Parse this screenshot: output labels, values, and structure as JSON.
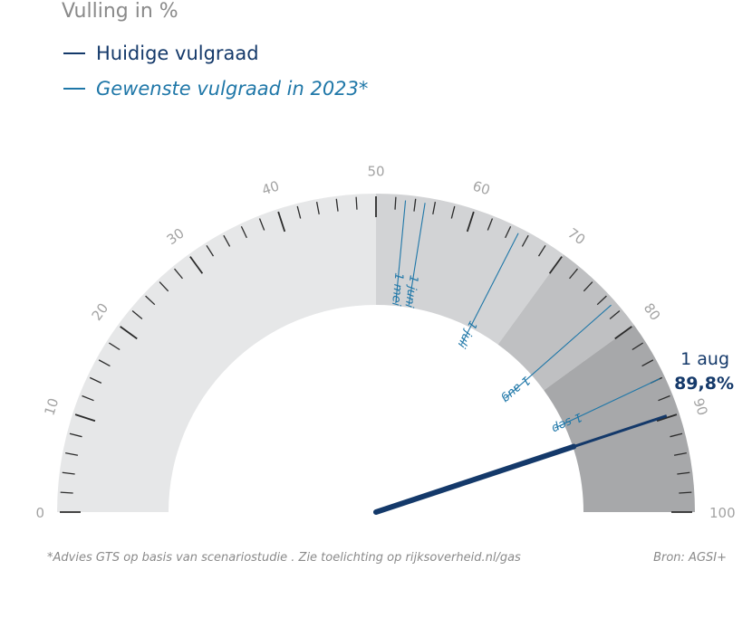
{
  "chart_data": {
    "type": "gauge",
    "title": "Vulling in %",
    "range": [
      0,
      100
    ],
    "major_ticks": [
      "0",
      "10",
      "20",
      "30",
      "40",
      "50",
      "60",
      "70",
      "80",
      "90",
      "100"
    ],
    "series": [
      {
        "name": "Huidige vulgraad",
        "color": "#14396a"
      },
      {
        "name": "Gewenste vulgraad in 2023*",
        "color": "#1f77a8"
      }
    ],
    "bands": [
      {
        "from": 0,
        "to": 50,
        "color": "#e6e7e8"
      },
      {
        "from": 50,
        "to": 70,
        "color": "#d2d3d5"
      },
      {
        "from": 70,
        "to": 80,
        "color": "#bfc0c2"
      },
      {
        "from": 80,
        "to": 100,
        "color": "#a7a8aa"
      }
    ],
    "targets": [
      {
        "label": "1 mei",
        "value": 53
      },
      {
        "label": "1 juni",
        "value": 55
      },
      {
        "label": "1 juli",
        "value": 65
      },
      {
        "label": "1 aug",
        "value": 77
      },
      {
        "label": "1 sep",
        "value": 86
      }
    ],
    "current": {
      "date": "1 aug",
      "value": 89.8,
      "value_label": "89,8%"
    }
  },
  "footnote": "*Advies GTS op basis van scenariostudie . Zie toelichting op rijksoverheid.nl/gas",
  "source": "Bron: AGSI+"
}
